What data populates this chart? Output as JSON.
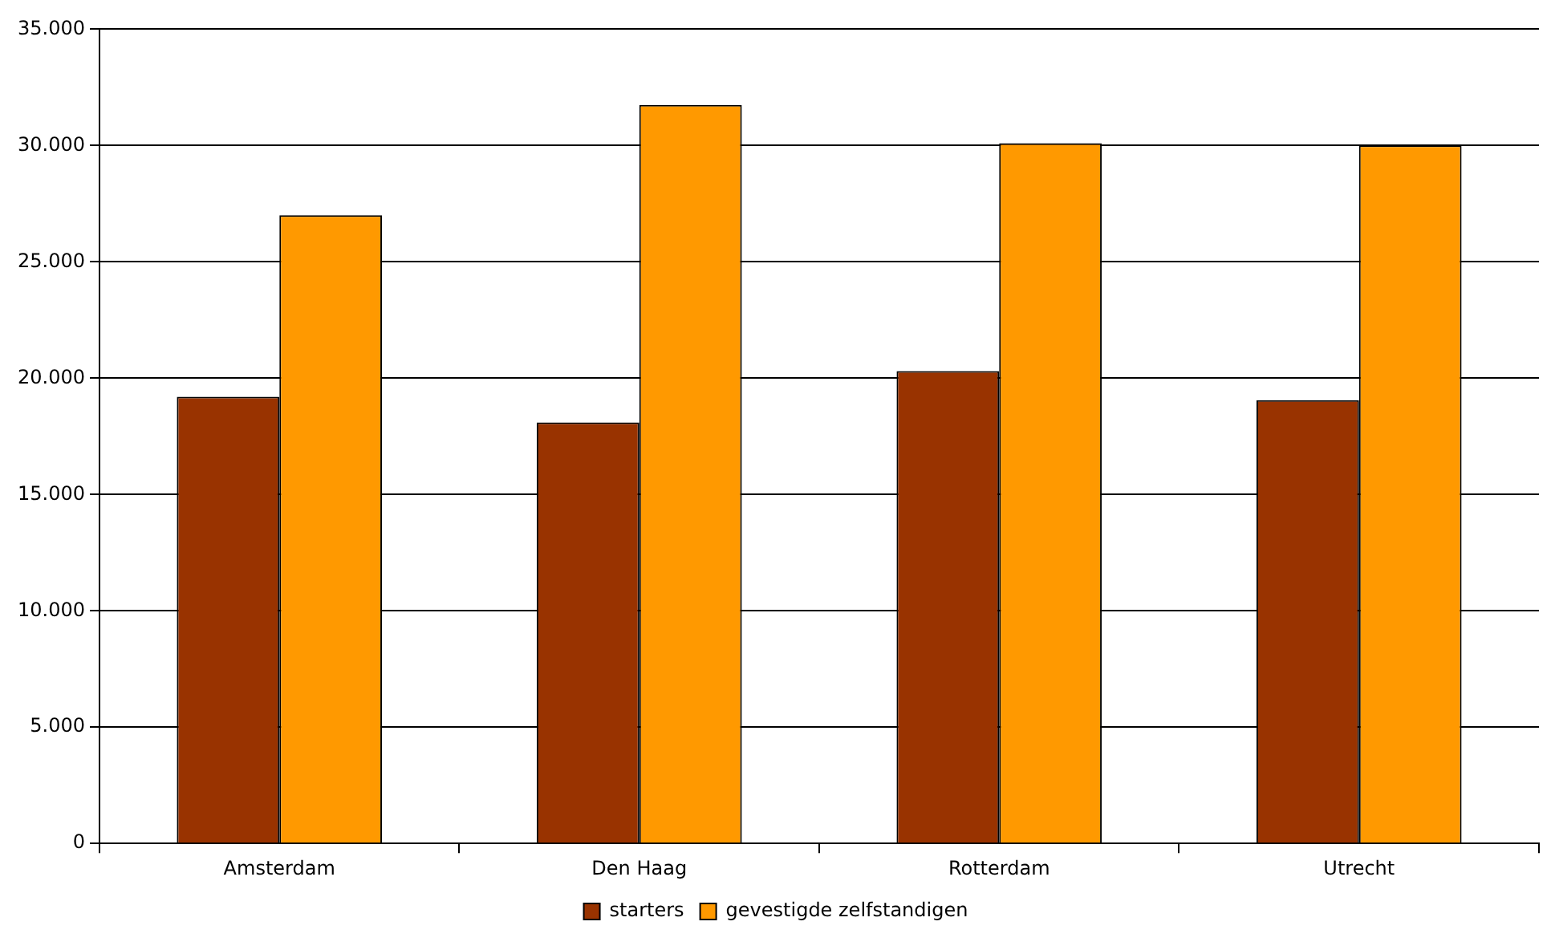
{
  "chart_data": {
    "type": "bar",
    "categories": [
      "Amsterdam",
      "Den Haag",
      "Rotterdam",
      "Utrecht"
    ],
    "series": [
      {
        "name": "starters",
        "color": "#993300",
        "values": [
          19200,
          18100,
          20300,
          19050
        ]
      },
      {
        "name": "gevestigde zelfstandigen",
        "color": "#ff9900",
        "values": [
          27000,
          31750,
          30100,
          30000
        ]
      }
    ],
    "ylim": [
      0,
      35000
    ],
    "yticks": [
      {
        "value": 0,
        "label": "0"
      },
      {
        "value": 5000,
        "label": "5.000"
      },
      {
        "value": 10000,
        "label": "10.000"
      },
      {
        "value": 15000,
        "label": "15.000"
      },
      {
        "value": 20000,
        "label": "20.000"
      },
      {
        "value": 25000,
        "label": "25.000"
      },
      {
        "value": 30000,
        "label": "30.000"
      },
      {
        "value": 35000,
        "label": "35.000"
      }
    ],
    "grid": "y",
    "legend": "bottom"
  }
}
